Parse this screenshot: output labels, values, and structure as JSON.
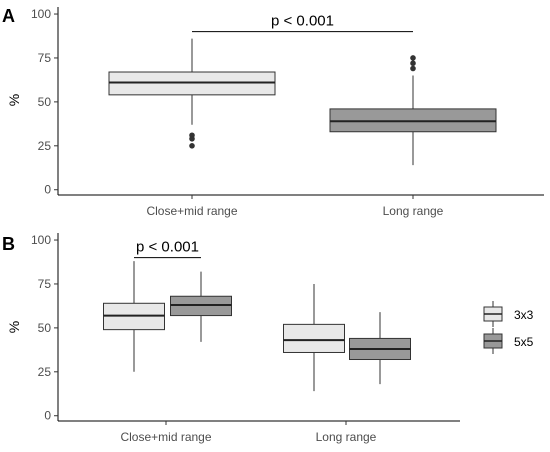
{
  "chart_data": [
    {
      "type": "box",
      "panel_label": "A",
      "ylabel": "%",
      "ylim": [
        -3,
        104
      ],
      "yticks": [
        0,
        25,
        50,
        75,
        100
      ],
      "categories": [
        "Close+mid range",
        "Long range"
      ],
      "colors": [
        "#e8e8e8",
        "#999999"
      ],
      "boxes": [
        {
          "category": "Close+mid range",
          "fill": "#e8e8e8",
          "min": 37,
          "q1": 54,
          "median": 61,
          "q3": 67,
          "max": 86,
          "outliers": [
            31,
            29,
            25
          ]
        },
        {
          "category": "Long range",
          "fill": "#999999",
          "min": 14,
          "q1": 33,
          "median": 39,
          "q3": 46,
          "max": 65,
          "outliers": [
            75,
            72,
            69
          ]
        }
      ],
      "annotation": {
        "text": "p < 0.001",
        "from": "Close+mid range",
        "to": "Long range",
        "y": 90
      },
      "grid": false
    },
    {
      "type": "box",
      "panel_label": "B",
      "ylabel": "%",
      "ylim": [
        -3,
        104
      ],
      "yticks": [
        0,
        25,
        50,
        75,
        100
      ],
      "categories": [
        "Close+mid range",
        "Long range"
      ],
      "legend": {
        "placement": "right",
        "entries": [
          {
            "label": "3x3",
            "fill": "#e8e8e8"
          },
          {
            "label": "5x5",
            "fill": "#999999"
          }
        ]
      },
      "boxes": [
        {
          "category": "Close+mid range",
          "group": "3x3",
          "fill": "#e8e8e8",
          "min": 25,
          "q1": 49,
          "median": 57,
          "q3": 64,
          "max": 88,
          "outliers": []
        },
        {
          "category": "Close+mid range",
          "group": "5x5",
          "fill": "#999999",
          "min": 42,
          "q1": 57,
          "median": 63,
          "q3": 68,
          "max": 82,
          "outliers": []
        },
        {
          "category": "Long range",
          "group": "3x3",
          "fill": "#e8e8e8",
          "min": 14,
          "q1": 36,
          "median": 43,
          "q3": 52,
          "max": 75,
          "outliers": []
        },
        {
          "category": "Long range",
          "group": "5x5",
          "fill": "#999999",
          "min": 18,
          "q1": 32,
          "median": 38,
          "q3": 44,
          "max": 59,
          "outliers": []
        }
      ],
      "annotation": {
        "text": "p < 0.001",
        "from_box": 0,
        "to_box": 1,
        "y": 90
      },
      "grid": false
    }
  ]
}
